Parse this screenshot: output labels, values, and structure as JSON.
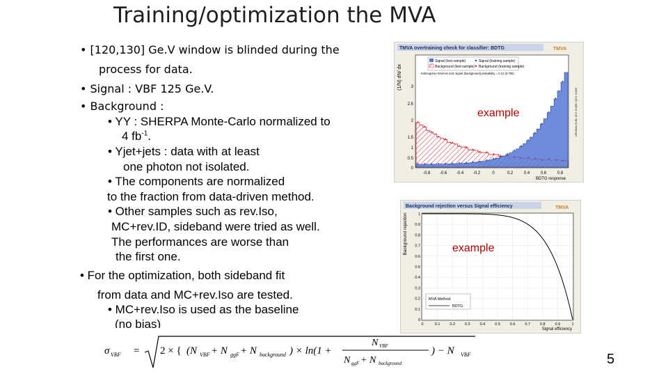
{
  "slide": {
    "title": "Training/optimization the MVA",
    "page_number": "5"
  },
  "bullets": {
    "b1_l1": "• [120,130] Ge.V window is blinded during the",
    "b1_l2": "process for data.",
    "b2": "• Signal : VBF 125 Ge.V.",
    "b3": "• Background :",
    "s1_l1": "• YY : SHERPA Monte-Carlo normalized to",
    "s1_l2": "4 fb",
    "s1_sup": "-1",
    "s1_l2_end": ".",
    "s2_l1": "• Yjet+jets : data with at least",
    "s2_l2": "one photon not isolated.",
    "s3_l1": "• The components are normalized",
    "s3_l2": "to the fraction from data-driven method.",
    "s4_l1": "• Other samples such as rev.Iso,",
    "s4_l2": "MC+rev.ID, sideband were tried as well.",
    "s4_l3": "The performances are worse than",
    "s4_l4": "the first one.",
    "b4_l1": "• For the optimization, both sideband fit",
    "b4_l2": "from data and MC+rev.Iso are tested.",
    "s5_l1": "• MC+rev.Iso is used as the baseline",
    "s5_l2": "(no bias)"
  },
  "figure_top": {
    "header": "TMVA overtraining check for classifier: BDTG",
    "logo": "TMVA",
    "legend": [
      "Signal (test sample)",
      "Background (test sample)",
      "Signal (training sample)",
      "Background (training sample)"
    ],
    "ks_text": "Kolmogorov-Smirnov test: signal (background) probability = 0.21 (0.786)",
    "side_text": "U/O-flow (S,B): (0.0, 0.0)% / (0.0, 0.0)%",
    "ylabel": "(1/N) dN/ dx",
    "xlabel": "BDTG response",
    "yticks": [
      "3",
      "2.5",
      "2",
      "1.5",
      "1",
      "0.5",
      "0"
    ],
    "xticks": [
      "-0.8",
      "-0.6",
      "-0.4",
      "-0.2",
      "0",
      "0.2",
      "0.4",
      "0.6",
      "0.8"
    ],
    "overlay": "example",
    "colors": {
      "signal": "#5578d6",
      "background": "#d0202a"
    }
  },
  "figure_bottom": {
    "header": "Background rejection versus Signal efficiency",
    "logo": "TMVA",
    "ylabel": "Background rejection",
    "xlabel": "Signal efficiency",
    "yticks": [
      "1",
      "0.9",
      "0.8",
      "0.7",
      "0.6",
      "0.5",
      "0.4",
      "0.3",
      "0.2",
      "0.1",
      "0"
    ],
    "xticks": [
      "0",
      "0.1",
      "0.2",
      "0.3",
      "0.4",
      "0.5",
      "0.6",
      "0.7",
      "0.8",
      "0.9",
      "1"
    ],
    "legend_title": "MVA Method:",
    "legend_item": "BDTG",
    "overlay": "example"
  },
  "formula": {
    "lhs": "σ",
    "lhs_sub": "VBF",
    "eq": "=",
    "sqrt_lead": "2 × {",
    "paren_terms": "(N",
    "sub_vbf": "VBF",
    "plus1": " + N",
    "sub_ggf": "ggF",
    "plus2": " + N",
    "sub_bkg": "background",
    "times_ln": ") × ln(1 +",
    "num": "N",
    "num_sub": "VBF",
    "den1": "N",
    "den1_sub": "ggF",
    "den_plus": " + N",
    "den2_sub": "background",
    "tail": ") − N",
    "tail_sub": "VBF"
  }
}
